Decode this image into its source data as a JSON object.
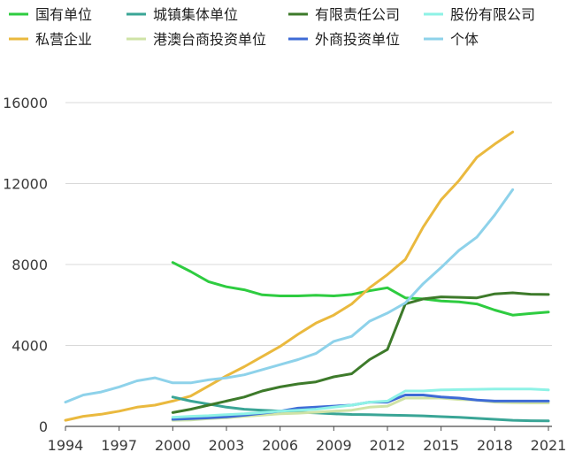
{
  "chart_data": {
    "type": "line",
    "title": "",
    "xlabel": "",
    "ylabel": "",
    "xlim": [
      1994,
      2021
    ],
    "ylim": [
      0,
      16000
    ],
    "x_ticks": [
      1994,
      1997,
      2000,
      2003,
      2006,
      2009,
      2012,
      2015,
      2018,
      2021
    ],
    "y_ticks": [
      0,
      4000,
      8000,
      12000,
      16000
    ],
    "grid": {
      "horizontal": true,
      "vertical": false
    },
    "legend_position": "top",
    "series": [
      {
        "name": "国有单位",
        "color": "#2ecc40",
        "x": [
          2000,
          2001,
          2002,
          2003,
          2004,
          2005,
          2006,
          2007,
          2008,
          2009,
          2010,
          2011,
          2012,
          2013,
          2014,
          2015,
          2016,
          2017,
          2018,
          2019,
          2020,
          2021
        ],
        "y": [
          8100,
          7650,
          7150,
          6900,
          6750,
          6500,
          6450,
          6450,
          6480,
          6450,
          6520,
          6700,
          6850,
          6350,
          6300,
          6200,
          6150,
          6050,
          5750,
          5500,
          5580,
          5650
        ]
      },
      {
        "name": "私营企业",
        "color": "#eab93e",
        "x": [
          1994,
          1995,
          1996,
          1997,
          1998,
          1999,
          2000,
          2001,
          2002,
          2003,
          2004,
          2005,
          2006,
          2007,
          2008,
          2009,
          2010,
          2011,
          2012,
          2013,
          2014,
          2015,
          2016,
          2017,
          2018,
          2019
        ],
        "y": [
          300,
          500,
          600,
          750,
          950,
          1050,
          1250,
          1500,
          2000,
          2500,
          2950,
          3450,
          3950,
          4550,
          5100,
          5500,
          6050,
          6850,
          7500,
          8250,
          9850,
          11200,
          12150,
          13300,
          13950,
          14550
        ]
      },
      {
        "name": "城镇集体单位",
        "color": "#3aa596",
        "x": [
          2000,
          2001,
          2002,
          2003,
          2004,
          2005,
          2006,
          2007,
          2008,
          2009,
          2010,
          2011,
          2012,
          2013,
          2014,
          2015,
          2016,
          2017,
          2018,
          2019,
          2020,
          2021
        ],
        "y": [
          1450,
          1250,
          1100,
          950,
          850,
          800,
          750,
          700,
          670,
          620,
          590,
          580,
          560,
          540,
          520,
          480,
          450,
          400,
          350,
          300,
          280,
          270
        ]
      },
      {
        "name": "港澳台商投资单位",
        "color": "#cfe3a6",
        "x": [
          2000,
          2001,
          2002,
          2003,
          2004,
          2005,
          2006,
          2007,
          2008,
          2009,
          2010,
          2011,
          2012,
          2013,
          2014,
          2015,
          2016,
          2017,
          2018,
          2019,
          2020,
          2021
        ],
        "y": [
          300,
          320,
          380,
          430,
          500,
          560,
          620,
          650,
          700,
          750,
          800,
          950,
          1000,
          1400,
          1400,
          1400,
          1330,
          1300,
          1200,
          1170,
          1160,
          1160
        ]
      },
      {
        "name": "有限责任公司",
        "color": "#3d7a2a",
        "x": [
          2000,
          2001,
          2002,
          2003,
          2004,
          2005,
          2006,
          2007,
          2008,
          2009,
          2010,
          2011,
          2012,
          2013,
          2014,
          2015,
          2016,
          2017,
          2018,
          2019,
          2020,
          2021
        ],
        "y": [
          680,
          850,
          1050,
          1250,
          1450,
          1750,
          1950,
          2100,
          2200,
          2450,
          2600,
          3300,
          3800,
          6050,
          6300,
          6400,
          6380,
          6350,
          6550,
          6600,
          6530,
          6520
        ]
      },
      {
        "name": "外商投资单位",
        "color": "#3e6bd6",
        "x": [
          2000,
          2001,
          2002,
          2003,
          2004,
          2005,
          2006,
          2007,
          2008,
          2009,
          2010,
          2011,
          2012,
          2013,
          2014,
          2015,
          2016,
          2017,
          2018,
          2019,
          2020,
          2021
        ],
        "y": [
          350,
          380,
          420,
          470,
          550,
          650,
          750,
          900,
          950,
          1000,
          1050,
          1200,
          1200,
          1550,
          1550,
          1450,
          1400,
          1300,
          1250,
          1250,
          1250,
          1250
        ]
      },
      {
        "name": "股份有限公司",
        "color": "#8ef2e6",
        "x": [
          2000,
          2001,
          2002,
          2003,
          2004,
          2005,
          2006,
          2007,
          2008,
          2009,
          2010,
          2011,
          2012,
          2013,
          2014,
          2015,
          2016,
          2017,
          2018,
          2019,
          2020,
          2021
        ],
        "y": [
          450,
          500,
          530,
          580,
          620,
          680,
          750,
          800,
          850,
          950,
          1050,
          1200,
          1250,
          1750,
          1750,
          1800,
          1820,
          1830,
          1850,
          1850,
          1850,
          1800
        ]
      },
      {
        "name": "个体",
        "color": "#8ed2ea",
        "x": [
          1994,
          1995,
          1996,
          1997,
          1998,
          1999,
          2000,
          2001,
          2002,
          2003,
          2004,
          2005,
          2006,
          2007,
          2008,
          2009,
          2010,
          2011,
          2012,
          2013,
          2014,
          2015,
          2016,
          2017,
          2018,
          2019
        ],
        "y": [
          1200,
          1550,
          1700,
          1950,
          2250,
          2400,
          2150,
          2150,
          2300,
          2400,
          2550,
          2800,
          3050,
          3300,
          3600,
          4200,
          4450,
          5200,
          5600,
          6100,
          7050,
          7850,
          8700,
          9350,
          10450,
          11700
        ]
      }
    ]
  }
}
